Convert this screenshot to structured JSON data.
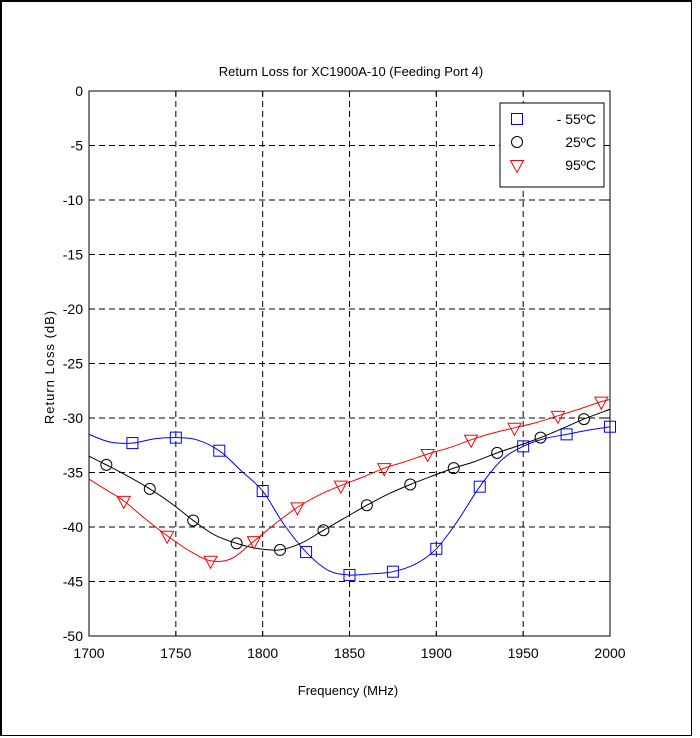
{
  "chart_data": {
    "type": "line",
    "title": "Return Loss for XC1900A-10 (Feeding Port 4)",
    "xlabel": "Frequency (MHz)",
    "ylabel": "Return  Loss  (dB)",
    "xlim": [
      1700,
      2000
    ],
    "ylim": [
      -50,
      0
    ],
    "xticks": [
      1700,
      1750,
      1800,
      1850,
      1900,
      1950,
      2000
    ],
    "yticks": [
      0,
      -5,
      -10,
      -15,
      -20,
      -25,
      -30,
      -35,
      -40,
      -45,
      -50
    ],
    "grid": true,
    "grid_style": "dashed",
    "legend_position": "top-right",
    "series": [
      {
        "name": "- 55ºC",
        "color": "#0000ff",
        "marker": "square",
        "x": [
          1700,
          1712,
          1725,
          1738,
          1750,
          1762,
          1775,
          1788,
          1800,
          1812,
          1825,
          1838,
          1850,
          1862,
          1875,
          1888,
          1900,
          1912,
          1925,
          1938,
          1950,
          1962,
          1975,
          1988,
          2000
        ],
        "y": [
          -31.5,
          -32.2,
          -32.3,
          -31.9,
          -31.8,
          -32.0,
          -33.0,
          -34.9,
          -36.7,
          -39.7,
          -42.3,
          -44.0,
          -44.4,
          -44.3,
          -44.1,
          -43.4,
          -42.0,
          -39.5,
          -36.3,
          -33.8,
          -32.6,
          -31.9,
          -31.5,
          -31.1,
          -30.8
        ],
        "marker_x": [
          1725,
          1750,
          1775,
          1800,
          1825,
          1850,
          1875,
          1900,
          1925,
          1950,
          1975,
          2000
        ],
        "marker_y": [
          -32.3,
          -31.8,
          -33.0,
          -36.7,
          -42.3,
          -44.4,
          -44.1,
          -42.0,
          -36.3,
          -32.6,
          -31.5,
          -30.8
        ]
      },
      {
        "name": "25ºC",
        "color": "#000000",
        "marker": "circle",
        "x": [
          1700,
          1710,
          1722,
          1735,
          1748,
          1760,
          1772,
          1785,
          1798,
          1810,
          1822,
          1835,
          1848,
          1860,
          1872,
          1885,
          1898,
          1910,
          1922,
          1935,
          1948,
          1960,
          1972,
          1985,
          2000
        ],
        "y": [
          -33.5,
          -34.3,
          -35.3,
          -36.5,
          -37.9,
          -39.4,
          -40.7,
          -41.5,
          -42.0,
          -42.1,
          -41.5,
          -40.3,
          -39.1,
          -38.0,
          -37.0,
          -36.1,
          -35.3,
          -34.6,
          -34.0,
          -33.2,
          -32.5,
          -31.8,
          -31.0,
          -30.1,
          -29.2
        ],
        "marker_x": [
          1710,
          1735,
          1760,
          1785,
          1810,
          1835,
          1860,
          1885,
          1910,
          1935,
          1960,
          1985
        ],
        "marker_y": [
          -34.3,
          -36.5,
          -39.4,
          -41.5,
          -42.1,
          -40.3,
          -38.0,
          -36.1,
          -34.6,
          -33.2,
          -31.8,
          -30.1
        ]
      },
      {
        "name": "95ºC",
        "color": "#ff0000",
        "marker": "triangle-down",
        "x": [
          1700,
          1710,
          1720,
          1732,
          1745,
          1758,
          1770,
          1782,
          1795,
          1808,
          1820,
          1832,
          1845,
          1858,
          1870,
          1882,
          1895,
          1908,
          1920,
          1932,
          1945,
          1958,
          1970,
          1982,
          1995,
          2000
        ],
        "y": [
          -35.6,
          -36.6,
          -37.6,
          -39.2,
          -40.8,
          -42.2,
          -43.1,
          -42.9,
          -41.3,
          -39.6,
          -38.2,
          -37.1,
          -36.2,
          -35.4,
          -34.6,
          -34.0,
          -33.3,
          -32.7,
          -32.0,
          -31.4,
          -30.9,
          -30.4,
          -29.8,
          -29.2,
          -28.5,
          -28.3
        ],
        "marker_x": [
          1720,
          1745,
          1770,
          1795,
          1820,
          1845,
          1870,
          1895,
          1920,
          1945,
          1970,
          1995
        ],
        "marker_y": [
          -37.6,
          -40.8,
          -43.1,
          -41.3,
          -38.2,
          -36.2,
          -34.6,
          -33.3,
          -32.0,
          -30.9,
          -29.8,
          -28.5
        ]
      }
    ]
  }
}
